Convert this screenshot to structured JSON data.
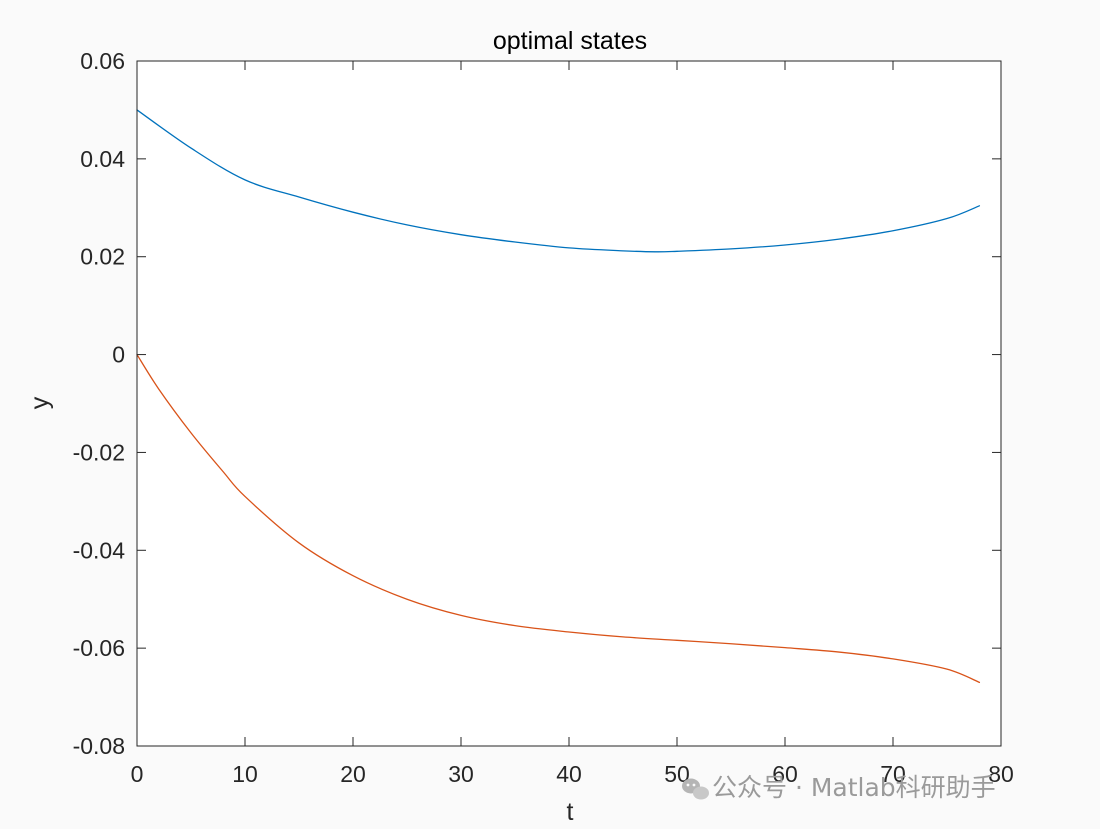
{
  "chart_data": {
    "type": "line",
    "title": "optimal states",
    "xlabel": "t",
    "ylabel": "y",
    "xlim": [
      0,
      80
    ],
    "ylim": [
      -0.08,
      0.06
    ],
    "xticks": [
      0,
      10,
      20,
      30,
      40,
      50,
      60,
      70,
      80
    ],
    "yticks": [
      -0.08,
      -0.06,
      -0.04,
      -0.02,
      0,
      0.02,
      0.04,
      0.06
    ],
    "xtick_labels": [
      "0",
      "10",
      "20",
      "30",
      "40",
      "50",
      "60",
      "70",
      "80"
    ],
    "ytick_labels": [
      "-0.08",
      "-0.06",
      "-0.04",
      "-0.02",
      "0",
      "0.02",
      "0.04",
      "0.06"
    ],
    "grid": false,
    "box": true,
    "series": [
      {
        "color": "#0072BD",
        "x": [
          0,
          5,
          10,
          15,
          20,
          25,
          30,
          35,
          40,
          45,
          48,
          50,
          55,
          60,
          65,
          70,
          75,
          78
        ],
        "y": [
          0.05,
          0.0422,
          0.0357,
          0.0322,
          0.0291,
          0.0265,
          0.0245,
          0.023,
          0.0218,
          0.0212,
          0.021,
          0.0211,
          0.0216,
          0.0224,
          0.0236,
          0.0253,
          0.0278,
          0.0304
        ]
      },
      {
        "color": "#D95319",
        "x": [
          0,
          2,
          5,
          8,
          10,
          15,
          20,
          25,
          30,
          35,
          40,
          45,
          50,
          55,
          60,
          65,
          70,
          75,
          78
        ],
        "y": [
          0.0,
          -0.007,
          -0.016,
          -0.024,
          -0.029,
          -0.0385,
          -0.0452,
          -0.05,
          -0.0533,
          -0.0554,
          -0.0567,
          -0.0577,
          -0.0584,
          -0.0591,
          -0.0599,
          -0.0608,
          -0.0622,
          -0.0643,
          -0.067
        ]
      }
    ]
  },
  "watermark": {
    "text": "公众号 · Matlab科研助手",
    "icon": "wechat-icon"
  }
}
